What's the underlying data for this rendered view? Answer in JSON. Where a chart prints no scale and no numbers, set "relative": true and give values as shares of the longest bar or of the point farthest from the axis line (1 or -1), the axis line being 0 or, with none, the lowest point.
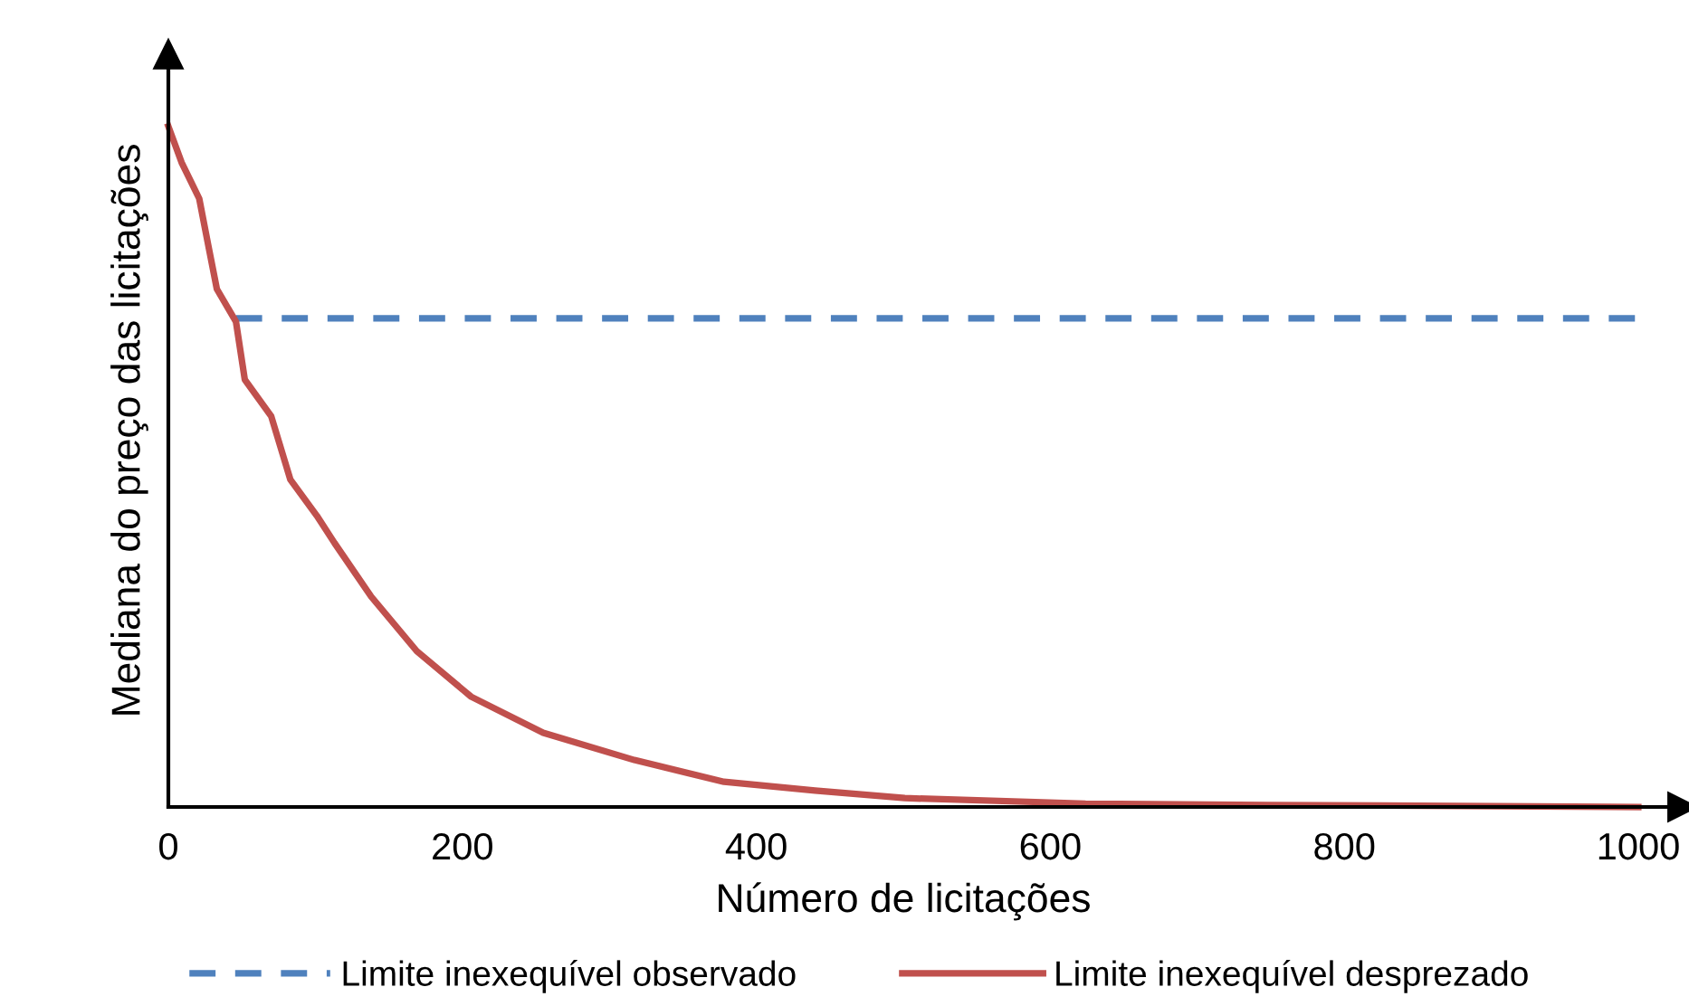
{
  "chart_data": {
    "type": "line",
    "relative": true,
    "xlabel": "Número de licitações",
    "ylabel": "Mediana do preço das licitações",
    "xlim": [
      0,
      1000
    ],
    "xticks": [
      0,
      200,
      400,
      600,
      800,
      1000
    ],
    "grid": false,
    "legend": "bottom",
    "series": [
      {
        "name": "Limite inexequível observado",
        "color": "#4f81bd",
        "line_style": "dashed",
        "x": [
          46,
          1000
        ],
        "values": [
          0.718,
          0.718
        ]
      },
      {
        "name": "Limite inexequível desprezado",
        "color": "#c0504d",
        "line_style": "solid",
        "x": [
          0,
          9,
          21,
          27,
          33,
          46,
          52,
          70,
          83,
          101,
          113,
          138,
          169,
          206,
          255,
          317,
          378,
          440,
          501,
          624,
          748,
          1000
        ],
        "values": [
          1.0,
          0.947,
          0.894,
          0.827,
          0.761,
          0.713,
          0.628,
          0.574,
          0.481,
          0.428,
          0.388,
          0.309,
          0.229,
          0.162,
          0.109,
          0.069,
          0.037,
          0.024,
          0.013,
          0.005,
          0.003,
          0.0
        ]
      }
    ]
  }
}
